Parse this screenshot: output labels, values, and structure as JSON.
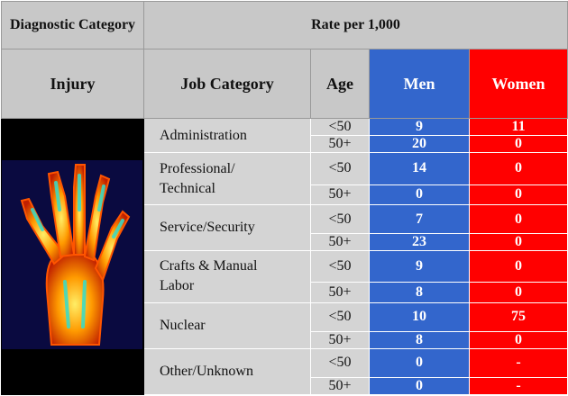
{
  "header": {
    "diagnostic_category": "Diagnostic Category",
    "rate": "Rate per 1,000",
    "injury": "Injury",
    "job_category": "Job Category",
    "age": "Age",
    "men": "Men",
    "women": "Women"
  },
  "groups": [
    {
      "job": "Administration",
      "rows": [
        {
          "age": "<50",
          "men": 9,
          "women": 11
        },
        {
          "age": "50+",
          "men": 20,
          "women": 0
        }
      ]
    },
    {
      "job": "Professional/ Technical",
      "rows": [
        {
          "age": "<50",
          "men": 14,
          "women": 0
        },
        {
          "age": "50+",
          "men": 0,
          "women": 0
        }
      ]
    },
    {
      "job": "Service/Security",
      "rows": [
        {
          "age": "<50",
          "men": 7,
          "women": 0
        },
        {
          "age": "50+",
          "men": 23,
          "women": 0
        }
      ]
    },
    {
      "job": "Crafts & Manual Labor",
      "rows": [
        {
          "age": "<50",
          "men": 9,
          "women": 0
        },
        {
          "age": "50+",
          "men": 8,
          "women": 0
        }
      ]
    },
    {
      "job": "Nuclear",
      "rows": [
        {
          "age": "<50",
          "men": 10,
          "women": 75
        },
        {
          "age": "50+",
          "men": 8,
          "women": 0
        }
      ]
    },
    {
      "job": "Other/Unknown",
      "rows": [
        {
          "age": "<50",
          "men": 0,
          "women": "-"
        },
        {
          "age": "50+",
          "men": 0,
          "women": "-"
        }
      ]
    }
  ]
}
